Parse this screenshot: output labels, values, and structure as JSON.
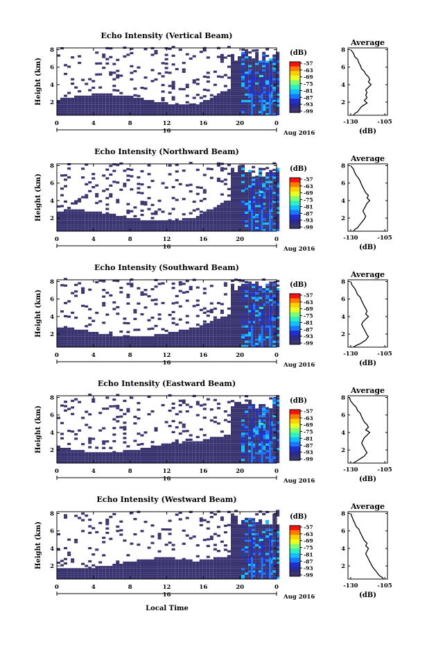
{
  "x_axis_label": "Local Time",
  "chart_data": [
    {
      "type": "heatmap",
      "title": "Echo Intensity (Vertical Beam)",
      "ylabel": "Height (km)",
      "xticks": [
        "0",
        "4",
        "8",
        "12",
        "16",
        "20",
        "0"
      ],
      "yticks": [
        "2",
        "4",
        "6",
        "8"
      ],
      "xlim": [
        0,
        24
      ],
      "ylim": [
        0.5,
        8.2
      ],
      "date_label": "16",
      "date_right": "Aug 2016",
      "colorbar_unit": "(dB)",
      "colorbar_ticks": [
        "-57",
        "-63",
        "-69",
        "-75",
        "-81",
        "-87",
        "-93",
        "-99"
      ],
      "colorscale": [
        "#ff1010",
        "#ff7a00",
        "#ffd000",
        "#e8ff20",
        "#80ff70",
        "#30f0c0",
        "#10c0ff",
        "#1878ff",
        "#2030d0",
        "#2a2a90",
        "#3a3470"
      ],
      "no_data_color": "#ffffff",
      "profile": {
        "title": "Average",
        "xlabel": "(dB)",
        "xticks": [
          "-130",
          "-105"
        ],
        "yticks": [
          "2",
          "4",
          "6",
          "8"
        ],
        "xlim": [
          -132,
          -103
        ],
        "ylim": [
          0.5,
          8.2
        ],
        "x": [
          -130,
          -128,
          -127,
          -125,
          -124,
          -123,
          -122,
          -120,
          -119,
          -117,
          -116,
          -117,
          -115,
          -117,
          -119,
          -118,
          -119,
          -118,
          -120,
          -118,
          -120,
          -122,
          -123,
          -124,
          -125,
          -127,
          -128
        ],
        "y": [
          8.0,
          7.6,
          7.2,
          6.9,
          6.5,
          6.2,
          5.8,
          5.5,
          5.2,
          4.9,
          4.6,
          4.3,
          4.0,
          3.7,
          3.4,
          3.1,
          2.8,
          2.5,
          2.2,
          1.9,
          1.7,
          1.5,
          1.3,
          1.1,
          0.9,
          0.7,
          0.5
        ]
      }
    },
    {
      "type": "heatmap",
      "title": "Echo Intensity (Northward Beam)",
      "ylabel": "Height (km)",
      "xticks": [
        "0",
        "4",
        "8",
        "12",
        "16",
        "20",
        "0"
      ],
      "yticks": [
        "2",
        "4",
        "6",
        "8"
      ],
      "xlim": [
        0,
        24
      ],
      "ylim": [
        0.5,
        8.2
      ],
      "date_label": "16",
      "date_right": "Aug 2016",
      "colorbar_unit": "(dB)",
      "colorbar_ticks": [
        "-57",
        "-63",
        "-69",
        "-75",
        "-81",
        "-87",
        "-93",
        "-99"
      ],
      "colorscale": [
        "#ff1010",
        "#ff7a00",
        "#ffd000",
        "#e8ff20",
        "#80ff70",
        "#30f0c0",
        "#10c0ff",
        "#1878ff",
        "#2030d0",
        "#2a2a90",
        "#3a3470"
      ],
      "no_data_color": "#ffffff",
      "profile": {
        "title": "Average",
        "xlabel": "(dB)",
        "xticks": [
          "-130",
          "-105"
        ],
        "yticks": [
          "2",
          "4",
          "6",
          "8"
        ],
        "xlim": [
          -132,
          -103
        ],
        "ylim": [
          0.5,
          8.2
        ],
        "x": [
          -130,
          -128,
          -127,
          -126,
          -124,
          -123,
          -122,
          -121,
          -120,
          -119,
          -117,
          -118,
          -116,
          -118,
          -119,
          -120,
          -121,
          -120,
          -119,
          -120,
          -121,
          -122,
          -123,
          -124,
          -125,
          -127,
          -128
        ],
        "y": [
          8.0,
          7.6,
          7.2,
          6.9,
          6.5,
          6.2,
          5.8,
          5.5,
          5.2,
          4.9,
          4.6,
          4.3,
          4.0,
          3.7,
          3.4,
          3.1,
          2.8,
          2.5,
          2.2,
          1.9,
          1.7,
          1.5,
          1.3,
          1.1,
          0.9,
          0.7,
          0.5
        ]
      }
    },
    {
      "type": "heatmap",
      "title": "Echo Intensity (Southward Beam)",
      "ylabel": "Height (km)",
      "xticks": [
        "0",
        "4",
        "8",
        "12",
        "16",
        "20",
        "0"
      ],
      "yticks": [
        "2",
        "4",
        "6",
        "8"
      ],
      "xlim": [
        0,
        24
      ],
      "ylim": [
        0.5,
        8.2
      ],
      "date_label": "16",
      "date_right": "Aug 2016",
      "colorbar_unit": "(dB)",
      "colorbar_ticks": [
        "-57",
        "-63",
        "-69",
        "-75",
        "-81",
        "-87",
        "-93",
        "-99"
      ],
      "colorscale": [
        "#ff1010",
        "#ff7a00",
        "#ffd000",
        "#e8ff20",
        "#80ff70",
        "#30f0c0",
        "#10c0ff",
        "#1878ff",
        "#2030d0",
        "#2a2a90",
        "#3a3470"
      ],
      "no_data_color": "#ffffff",
      "profile": {
        "title": "Average",
        "xlabel": "(dB)",
        "xticks": [
          "-130",
          "-105"
        ],
        "yticks": [
          "2",
          "4",
          "6",
          "8"
        ],
        "xlim": [
          -132,
          -103
        ],
        "ylim": [
          0.5,
          8.2
        ],
        "x": [
          -130,
          -129,
          -127,
          -126,
          -125,
          -123,
          -122,
          -121,
          -120,
          -119,
          -118,
          -119,
          -117,
          -119,
          -121,
          -122,
          -121,
          -120,
          -119,
          -118,
          -117,
          -118,
          -119,
          -121,
          -123,
          -126,
          -128
        ],
        "y": [
          8.0,
          7.6,
          7.2,
          6.9,
          6.5,
          6.2,
          5.8,
          5.5,
          5.2,
          4.9,
          4.6,
          4.3,
          4.0,
          3.7,
          3.4,
          3.1,
          2.8,
          2.5,
          2.2,
          1.9,
          1.7,
          1.5,
          1.3,
          1.1,
          0.9,
          0.7,
          0.5
        ]
      }
    },
    {
      "type": "heatmap",
      "title": "Echo Intensity (Eastward Beam)",
      "ylabel": "Height (km)",
      "xticks": [
        "0",
        "4",
        "8",
        "12",
        "16",
        "20",
        "0"
      ],
      "yticks": [
        "2",
        "4",
        "6",
        "8"
      ],
      "xlim": [
        0,
        24
      ],
      "ylim": [
        0.5,
        8.2
      ],
      "date_label": "16",
      "date_right": "Aug 2016",
      "colorbar_unit": "(dB)",
      "colorbar_ticks": [
        "-57",
        "-63",
        "-69",
        "-75",
        "-81",
        "-87",
        "-93",
        "-99"
      ],
      "colorscale": [
        "#ff1010",
        "#ff7a00",
        "#ffd000",
        "#e8ff20",
        "#80ff70",
        "#30f0c0",
        "#10c0ff",
        "#1878ff",
        "#2030d0",
        "#2a2a90",
        "#3a3470"
      ],
      "no_data_color": "#ffffff",
      "profile": {
        "title": "Average",
        "xlabel": "(dB)",
        "xticks": [
          "-130",
          "-105"
        ],
        "yticks": [
          "2",
          "4",
          "6",
          "8"
        ],
        "xlim": [
          -132,
          -103
        ],
        "ylim": [
          0.5,
          8.2
        ],
        "x": [
          -131,
          -130,
          -128,
          -126,
          -125,
          -123,
          -122,
          -121,
          -120,
          -118,
          -117,
          -119,
          -116,
          -118,
          -120,
          -121,
          -122,
          -121,
          -120,
          -119,
          -118,
          -119,
          -120,
          -122,
          -124,
          -126,
          -128
        ],
        "y": [
          8.0,
          7.6,
          7.2,
          6.9,
          6.5,
          6.2,
          5.8,
          5.5,
          5.2,
          4.9,
          4.6,
          4.3,
          4.0,
          3.7,
          3.4,
          3.1,
          2.8,
          2.5,
          2.2,
          1.9,
          1.7,
          1.5,
          1.3,
          1.1,
          0.9,
          0.7,
          0.5
        ]
      }
    },
    {
      "type": "heatmap",
      "title": "Echo Intensity (Westward Beam)",
      "ylabel": "Height (km)",
      "xticks": [
        "0",
        "4",
        "8",
        "12",
        "16",
        "20",
        "0"
      ],
      "yticks": [
        "2",
        "4",
        "6",
        "8"
      ],
      "xlim": [
        0,
        24
      ],
      "ylim": [
        0.5,
        8.2
      ],
      "date_label": "16",
      "date_right": "Aug 2016",
      "colorbar_unit": "(dB)",
      "colorbar_ticks": [
        "-57",
        "-63",
        "-69",
        "-75",
        "-81",
        "-87",
        "-93",
        "-99"
      ],
      "colorscale": [
        "#ff1010",
        "#ff7a00",
        "#ffd000",
        "#e8ff20",
        "#80ff70",
        "#30f0c0",
        "#10c0ff",
        "#1878ff",
        "#2030d0",
        "#2a2a90",
        "#3a3470"
      ],
      "no_data_color": "#ffffff",
      "profile": {
        "title": "Average",
        "xlabel": "(dB)",
        "xticks": [
          "-130",
          "-105"
        ],
        "yticks": [
          "2",
          "4",
          "6",
          "8"
        ],
        "xlim": [
          -132,
          -103
        ],
        "ylim": [
          0.5,
          8.2
        ],
        "x": [
          -130,
          -129,
          -128,
          -127,
          -126,
          -124,
          -123,
          -122,
          -121,
          -120,
          -118,
          -119,
          -117,
          -118,
          -119,
          -118,
          -117,
          -116,
          -115,
          -114,
          -113,
          -112,
          -111,
          -110,
          -109,
          -107,
          -106
        ],
        "y": [
          8.0,
          7.6,
          7.2,
          6.9,
          6.5,
          6.2,
          5.8,
          5.5,
          5.2,
          4.9,
          4.6,
          4.3,
          4.0,
          3.7,
          3.4,
          3.1,
          2.8,
          2.5,
          2.2,
          1.9,
          1.7,
          1.5,
          1.3,
          1.1,
          0.9,
          0.7,
          0.5
        ]
      }
    }
  ]
}
